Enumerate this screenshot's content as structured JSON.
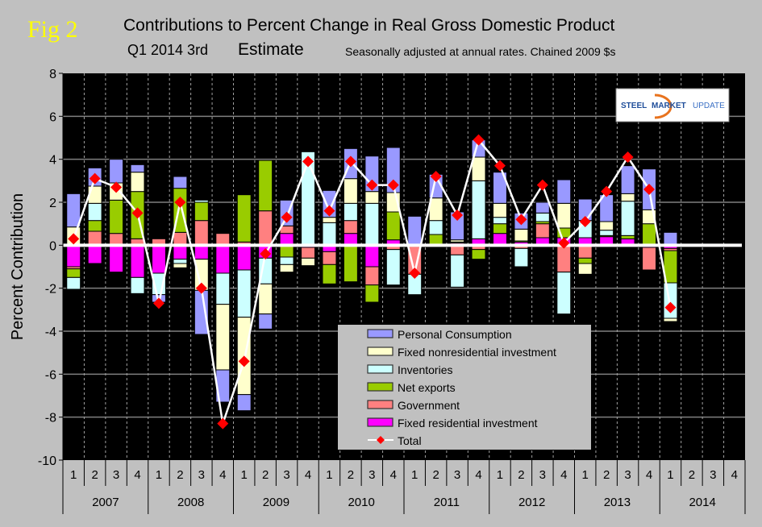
{
  "figure": {
    "fig_label": "Fig 2",
    "title": "Contributions to Percent Change in Real Gross Domestic Product",
    "subtitle_prefix": "Q1 2014 3rd",
    "subtitle_bold": "Estimate",
    "note": "Seasonally adjusted at annual rates. Chained 2009 $s",
    "logo": {
      "word1": "STEEL",
      "word2": "MARKET",
      "word3": "UPDATE"
    }
  },
  "colors": {
    "personal_consumption": "#9999ff",
    "fixed_nonres": "#ffffcc",
    "inventories": "#ccffff",
    "net_exports": "#99cc00",
    "government": "#ff8080",
    "fixed_res": "#ff00ff",
    "total_marker": "#ff0000",
    "total_line": "#ffffff",
    "plot_bg": "#000000",
    "page_bg": "#c0c0c0"
  },
  "chart_data": {
    "type": "bar",
    "stacked": true,
    "title": "Contributions to Percent Change in Real Gross Domestic Product",
    "xlabel": "",
    "ylabel": "Percent Contribution",
    "ylim": [
      -10,
      8
    ],
    "yticks": [
      8,
      6,
      4,
      2,
      0,
      -2,
      -4,
      -6,
      -8,
      -10
    ],
    "grid": true,
    "legend_position": "bottom-center",
    "years": [
      "2007",
      "2008",
      "2009",
      "2010",
      "2011",
      "2012",
      "2013",
      "2014"
    ],
    "quarters": [
      "1",
      "2",
      "3",
      "4"
    ],
    "categories": [
      "2007Q1",
      "2007Q2",
      "2007Q3",
      "2007Q4",
      "2008Q1",
      "2008Q2",
      "2008Q3",
      "2008Q4",
      "2009Q1",
      "2009Q2",
      "2009Q3",
      "2009Q4",
      "2010Q1",
      "2010Q2",
      "2010Q3",
      "2010Q4",
      "2011Q1",
      "2011Q2",
      "2011Q3",
      "2011Q4",
      "2012Q1",
      "2012Q2",
      "2012Q3",
      "2012Q4",
      "2013Q1",
      "2013Q2",
      "2013Q3",
      "2013Q4",
      "2014Q1",
      "2014Q2",
      "2014Q3",
      "2014Q4"
    ],
    "series": [
      {
        "name": "Fixed residential investment",
        "key": "fixed_res",
        "values": [
          -1.0,
          -0.85,
          -1.25,
          -1.5,
          -1.3,
          -0.65,
          -0.65,
          -1.3,
          -1.15,
          -0.6,
          0.55,
          -0.1,
          -0.3,
          0.55,
          -1.0,
          0.25,
          -0.05,
          0.05,
          0.1,
          0.3,
          0.55,
          0.15,
          0.35,
          0.35,
          0.35,
          0.4,
          0.3,
          -0.1,
          -0.15,
          null,
          null,
          null
        ]
      },
      {
        "name": "Government",
        "key": "government",
        "values": [
          -0.1,
          0.65,
          0.55,
          0.3,
          0.3,
          0.6,
          1.15,
          0.55,
          0.15,
          1.6,
          0.35,
          -0.5,
          -0.6,
          0.6,
          -0.85,
          -0.2,
          -1.3,
          0.0,
          -0.45,
          -0.2,
          0.0,
          -0.15,
          0.65,
          -1.25,
          -0.6,
          0.0,
          0.0,
          -1.05,
          -0.1,
          null,
          null,
          null
        ]
      },
      {
        "name": "Net exports",
        "key": "net_exports",
        "values": [
          -0.4,
          0.5,
          1.55,
          2.2,
          0.0,
          2.05,
          0.85,
          0.0,
          2.2,
          2.35,
          -0.55,
          0.0,
          -0.9,
          -1.7,
          -0.8,
          1.3,
          0.0,
          0.45,
          0.05,
          -0.45,
          0.45,
          0.05,
          0.1,
          0.45,
          -0.25,
          0.05,
          0.15,
          1.0,
          -1.5,
          null,
          null,
          null
        ]
      },
      {
        "name": "Inventories",
        "key": "inventories",
        "values": [
          -0.55,
          0.8,
          0.0,
          -0.75,
          -1.0,
          -0.2,
          0.1,
          -1.45,
          -2.2,
          -1.2,
          -0.35,
          4.35,
          1.05,
          0.8,
          1.95,
          -1.65,
          -0.95,
          0.65,
          -1.5,
          2.7,
          0.3,
          -0.85,
          0.4,
          -1.95,
          0.8,
          0.25,
          1.6,
          0.0,
          -1.65,
          null,
          null,
          null
        ]
      },
      {
        "name": "Fixed nonresidential investment",
        "key": "fixed_nonres",
        "values": [
          0.85,
          0.8,
          0.8,
          0.9,
          0.0,
          -0.2,
          -1.45,
          -3.05,
          -3.6,
          -1.4,
          -0.35,
          -0.35,
          0.25,
          1.15,
          0.55,
          0.9,
          0.0,
          1.05,
          0.1,
          1.1,
          0.65,
          0.55,
          0.0,
          1.15,
          -0.5,
          0.4,
          0.35,
          0.65,
          -0.15,
          null,
          null,
          null
        ]
      },
      {
        "name": "Personal Consumption",
        "key": "personal_consumption",
        "values": [
          1.55,
          0.85,
          1.1,
          0.35,
          -0.35,
          0.55,
          -2.05,
          -1.5,
          -0.75,
          -0.7,
          1.2,
          0.0,
          1.25,
          1.4,
          1.65,
          2.1,
          1.35,
          1.1,
          1.3,
          0.8,
          1.45,
          0.75,
          0.5,
          1.1,
          1.0,
          1.25,
          1.3,
          1.9,
          0.6,
          null,
          null,
          null
        ]
      },
      {
        "name": "Total",
        "key": "total",
        "type": "line",
        "values": [
          0.3,
          3.1,
          2.7,
          1.5,
          -2.7,
          2.0,
          -2.0,
          -8.3,
          -5.4,
          -0.4,
          1.3,
          3.9,
          1.6,
          3.9,
          2.8,
          2.8,
          -1.3,
          3.2,
          1.4,
          4.9,
          3.7,
          1.2,
          2.8,
          0.1,
          1.1,
          2.5,
          4.1,
          2.6,
          -2.9,
          null,
          null,
          null
        ]
      }
    ]
  }
}
